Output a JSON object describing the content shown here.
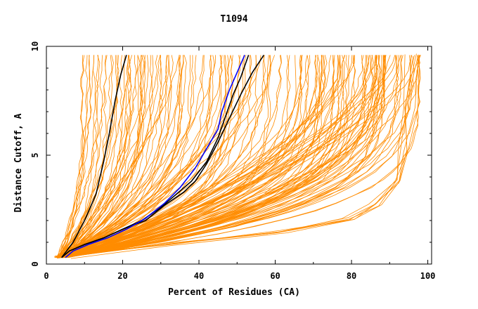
{
  "chart_data": {
    "type": "line",
    "title": "T1094",
    "xlabel": "Percent of Residues (CA)",
    "ylabel": "Distance Cutoff, A",
    "xlim": [
      0,
      101
    ],
    "ylim": [
      0,
      10
    ],
    "x_ticks": [
      0,
      20,
      40,
      60,
      80,
      100
    ],
    "y_ticks": [
      0,
      5,
      10
    ],
    "colors": {
      "background_series": "#ff8c00",
      "highlight_black": "#000000",
      "highlight_blue": "#0000ff",
      "axis": "#000000"
    },
    "highlighted_series": [
      {
        "color": "#000000",
        "points": [
          [
            4,
            0.3
          ],
          [
            7,
            1.0
          ],
          [
            10,
            2.0
          ],
          [
            13,
            3.2
          ],
          [
            15,
            4.7
          ],
          [
            16.5,
            6.0
          ],
          [
            18,
            7.5
          ],
          [
            19.5,
            8.7
          ],
          [
            21,
            9.6
          ]
        ]
      },
      {
        "color": "#000000",
        "points": [
          [
            4,
            0.3
          ],
          [
            6,
            0.6
          ],
          [
            10,
            0.9
          ],
          [
            15,
            1.2
          ],
          [
            20,
            1.6
          ],
          [
            25,
            2.0
          ],
          [
            30,
            2.6
          ],
          [
            34,
            3.2
          ],
          [
            38,
            3.8
          ],
          [
            42,
            4.7
          ],
          [
            45,
            5.8
          ],
          [
            47,
            6.8
          ],
          [
            49,
            7.8
          ],
          [
            51,
            8.6
          ],
          [
            53,
            9.6
          ]
        ]
      },
      {
        "color": "#000000",
        "points": [
          [
            4,
            0.3
          ],
          [
            6,
            0.6
          ],
          [
            10,
            0.9
          ],
          [
            15,
            1.2
          ],
          [
            20,
            1.6
          ],
          [
            26,
            2.0
          ],
          [
            31,
            2.7
          ],
          [
            36,
            3.3
          ],
          [
            39,
            3.8
          ],
          [
            42,
            4.6
          ],
          [
            45,
            5.6
          ],
          [
            48,
            6.7
          ],
          [
            51,
            7.8
          ],
          [
            54,
            8.8
          ],
          [
            57,
            9.6
          ]
        ]
      },
      {
        "color": "#0000ff",
        "points": [
          [
            5,
            0.3
          ],
          [
            7,
            0.6
          ],
          [
            11,
            0.9
          ],
          [
            16,
            1.2
          ],
          [
            21,
            1.6
          ],
          [
            26,
            2.1
          ],
          [
            31,
            2.8
          ],
          [
            35,
            3.5
          ],
          [
            39,
            4.4
          ],
          [
            42,
            5.3
          ],
          [
            45,
            6.2
          ],
          [
            46,
            7.0
          ],
          [
            48,
            8.0
          ],
          [
            50,
            8.8
          ],
          [
            52,
            9.6
          ]
        ]
      }
    ]
  }
}
